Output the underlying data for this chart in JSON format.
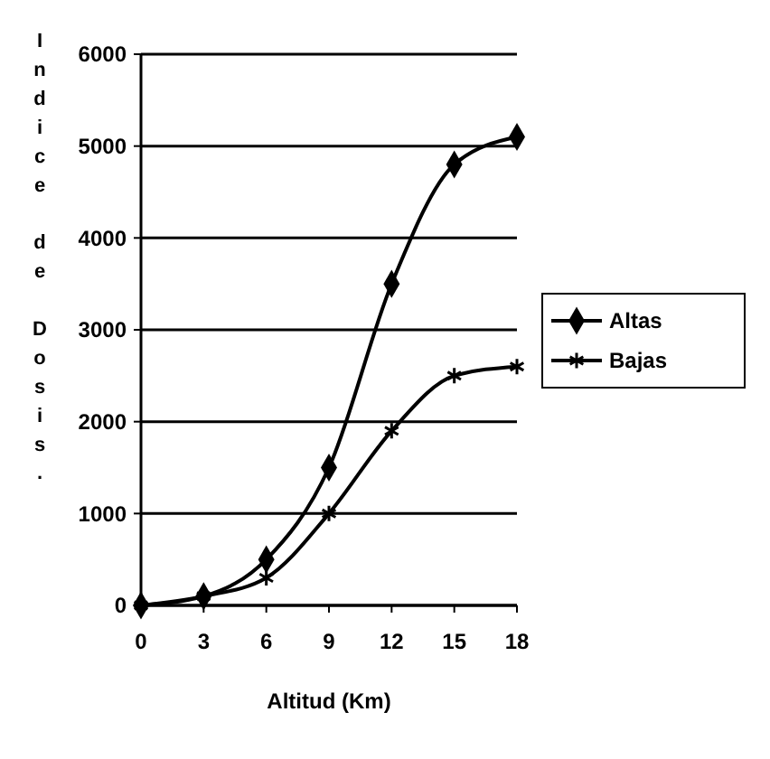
{
  "chart_data": {
    "type": "line",
    "xlabel": "Altitud (Km)",
    "ylabel": "Indice de Dosis.",
    "x": [
      0,
      3,
      6,
      9,
      12,
      15,
      18
    ],
    "series": [
      {
        "name": "Altas",
        "color": "#000000",
        "marker": "diamond",
        "values": [
          0,
          100,
          500,
          1500,
          3500,
          4800,
          5100
        ]
      },
      {
        "name": "Bajas",
        "color": "#000000",
        "marker": "cross",
        "values": [
          0,
          100,
          300,
          1000,
          1900,
          2500,
          2600
        ]
      }
    ],
    "xlim": [
      0,
      18
    ],
    "xticks": [
      0,
      3,
      6,
      9,
      12,
      15,
      18
    ],
    "ylim": [
      0,
      6000
    ],
    "yticks": [
      0,
      1000,
      2000,
      3000,
      4000,
      5000,
      6000
    ],
    "grid": "y",
    "legend": "right",
    "line_style": "solid"
  }
}
